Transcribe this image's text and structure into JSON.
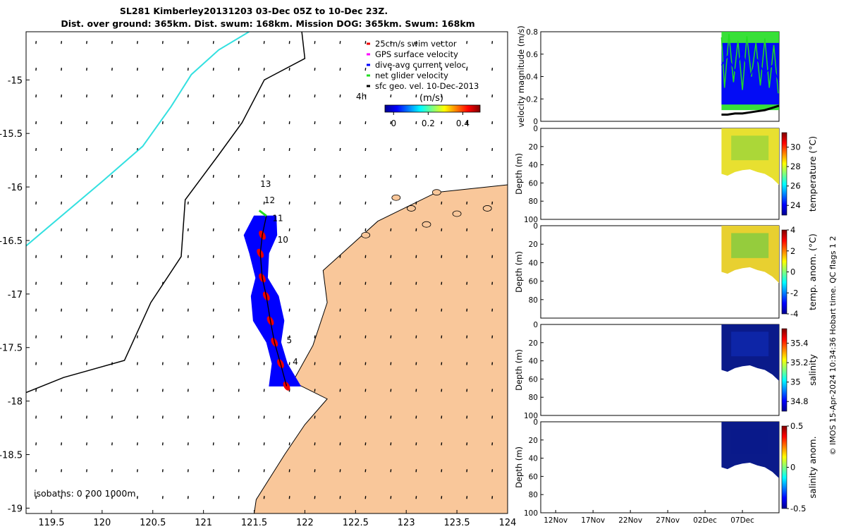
{
  "title_line1": "SL281 Kimberley20131203 03-Dec 05Z to 10-Dec 23Z.",
  "title_line2": "Dist. over ground: 365km. Dist. swum: 168km. Mission DOG: 365km. Swum: 168km",
  "colors": {
    "land": "#f9c79a",
    "track": "#0000ff",
    "isobath_200": "#000000",
    "isobath_1000": "#33e0e0",
    "net_velocity": "#22dd22",
    "swim_vector": "#ee0000",
    "gps_velocity": "#ff00ff",
    "temperature_fill": "#e8e030",
    "salinity_fill": "#0a1a8a"
  },
  "chart_data": [
    {
      "type": "map",
      "title": "glider track map",
      "x_ticks": [
        "119.5",
        "120",
        "120.5",
        "121",
        "121.5",
        "122",
        "122.5",
        "123",
        "123.5",
        "124"
      ],
      "x_tick_values": [
        119.5,
        120,
        120.5,
        121,
        121.5,
        122,
        122.5,
        123,
        123.5,
        124
      ],
      "y_ticks": [
        "-15",
        "-15.5",
        "-16",
        "-16.5",
        "-17",
        "-17.5",
        "-18",
        "-18.5",
        "-19"
      ],
      "y_tick_values": [
        -15,
        -15.5,
        -16,
        -16.5,
        -17,
        -17.5,
        -18,
        -18.5,
        -19
      ],
      "xlim": [
        119.25,
        124.0
      ],
      "ylim": [
        -19.05,
        -14.55
      ],
      "legend": [
        {
          "label": "25cm/s swim vector",
          "color": "#ee0000"
        },
        {
          "label": "GPS surface velocity",
          "color": "#ff00ff"
        },
        {
          "label": "dive-avg current veloc.",
          "color": "#0000ff"
        },
        {
          "label": "net glider velocity",
          "color": "#22dd22"
        },
        {
          "label": "sfc geo. vel. 10-Dec-2013",
          "color": "#000000"
        }
      ],
      "colorbar": {
        "label": "(m/s)",
        "ticks": [
          "0",
          "0.2",
          "0.4"
        ],
        "tick_values": [
          0,
          0.2,
          0.4
        ],
        "range": [
          -0.05,
          0.5
        ]
      },
      "arrow_time_label": "4h",
      "day_labels": [
        {
          "text": "13",
          "lon": 121.56,
          "lat": -16.0
        },
        {
          "text": "12",
          "lon": 121.6,
          "lat": -16.15
        },
        {
          "text": "11",
          "lon": 121.68,
          "lat": -16.32
        },
        {
          "text": "10",
          "lon": 121.73,
          "lat": -16.52
        },
        {
          "text": "5",
          "lon": 121.82,
          "lat": -17.46
        },
        {
          "text": "4",
          "lon": 121.88,
          "lat": -17.66
        }
      ],
      "isobath_label": "isobaths: 0   200  1000m",
      "glider_track": [
        [
          121.62,
          -16.27
        ],
        [
          121.58,
          -16.45
        ],
        [
          121.56,
          -16.62
        ],
        [
          121.58,
          -16.85
        ],
        [
          121.62,
          -17.02
        ],
        [
          121.66,
          -17.25
        ],
        [
          121.7,
          -17.45
        ],
        [
          121.76,
          -17.65
        ],
        [
          121.82,
          -17.86
        ]
      ],
      "isobath_1000m": [
        [
          121.45,
          -14.55
        ],
        [
          121.15,
          -14.72
        ],
        [
          120.88,
          -14.95
        ],
        [
          120.68,
          -15.25
        ],
        [
          120.4,
          -15.62
        ],
        [
          120.0,
          -15.95
        ],
        [
          119.25,
          -16.55
        ]
      ],
      "isobath_200m": [
        [
          121.97,
          -14.55
        ],
        [
          122.0,
          -14.8
        ],
        [
          121.6,
          -15.0
        ],
        [
          121.38,
          -15.4
        ],
        [
          121.15,
          -15.7
        ],
        [
          120.82,
          -16.12
        ],
        [
          120.78,
          -16.65
        ],
        [
          120.48,
          -17.08
        ],
        [
          120.22,
          -17.62
        ],
        [
          119.62,
          -17.78
        ],
        [
          119.25,
          -17.92
        ]
      ],
      "coastline": [
        [
          124.0,
          -15.98
        ],
        [
          123.3,
          -16.05
        ],
        [
          122.72,
          -16.32
        ],
        [
          122.18,
          -16.78
        ],
        [
          122.22,
          -17.08
        ],
        [
          122.08,
          -17.48
        ],
        [
          121.88,
          -17.82
        ],
        [
          122.22,
          -17.98
        ],
        [
          122.0,
          -18.22
        ],
        [
          121.8,
          -18.5
        ],
        [
          121.52,
          -18.92
        ],
        [
          121.5,
          -19.05
        ],
        [
          124.0,
          -19.05
        ]
      ]
    },
    {
      "type": "line",
      "panel": "velocity",
      "ylabel": "velocity magnitude (m/s)",
      "ylim": [
        0,
        0.8
      ],
      "y_ticks": [
        "0",
        "0.2",
        "0.4",
        "0.6",
        "0.8"
      ],
      "y_tick_values": [
        0,
        0.2,
        0.4,
        0.6,
        0.8
      ],
      "series": [
        {
          "name": "net glider velocity",
          "color": "#22dd22",
          "x": [
            3.2,
            3.6,
            4.2,
            4.8,
            5.4,
            6.0,
            6.6,
            7.2,
            7.8,
            8.4,
            9.0,
            9.6,
            10.2,
            10.8
          ],
          "values": [
            0.75,
            0.3,
            0.78,
            0.35,
            0.72,
            0.28,
            0.76,
            0.4,
            0.7,
            0.32,
            0.74,
            0.3,
            0.68,
            0.25
          ]
        },
        {
          "name": "dive-avg current veloc.",
          "color": "#0000ff",
          "x": [
            3.2,
            4.0,
            5.0,
            6.0,
            7.0,
            8.0,
            9.0,
            10.0,
            10.9
          ],
          "values": [
            0.5,
            0.58,
            0.45,
            0.62,
            0.4,
            0.55,
            0.42,
            0.5,
            0.35
          ]
        },
        {
          "name": "sfc geo. vel.",
          "color": "#000000",
          "x": [
            3.2,
            4.0,
            5.0,
            6.0,
            7.0,
            8.0,
            9.0,
            10.0,
            10.9
          ],
          "values": [
            0.06,
            0.06,
            0.07,
            0.07,
            0.08,
            0.09,
            0.1,
            0.12,
            0.14
          ]
        }
      ],
      "x_day_range": [
        -21,
        10.9
      ]
    },
    {
      "type": "heatmap",
      "panel": "temperature",
      "ylabel": "Depth (m)",
      "colorbar_label": "temperature (°C)",
      "colorbar_ticks": [
        "24",
        "26",
        "28",
        "30"
      ],
      "colorbar_tick_values": [
        24,
        26,
        28,
        30
      ],
      "colorbar_range": [
        23,
        31.5
      ],
      "y_ticks": [
        "0",
        "20",
        "40",
        "60",
        "80",
        "100"
      ],
      "y_tick_values": [
        0,
        20,
        40,
        60,
        80,
        100
      ],
      "ylim": [
        0,
        100
      ],
      "bottom_depth_day": [
        3.2,
        4.0,
        5.0,
        6.0,
        7.0,
        8.0,
        9.0,
        10.0,
        10.9
      ],
      "bottom_depth_m": [
        50,
        52,
        48,
        46,
        45,
        48,
        50,
        55,
        62
      ]
    },
    {
      "type": "heatmap",
      "panel": "temperature anomaly",
      "ylabel": "Depth (m)",
      "colorbar_label": "temp. anom. (°C)",
      "colorbar_ticks": [
        "-4",
        "-2",
        "0",
        "2",
        "4"
      ],
      "colorbar_tick_values": [
        -4,
        -2,
        0,
        2,
        4
      ],
      "colorbar_range": [
        -4,
        4
      ],
      "y_ticks": [
        "0",
        "20",
        "40",
        "60",
        "80"
      ],
      "y_tick_values": [
        0,
        20,
        40,
        60,
        80
      ],
      "ylim": [
        0,
        100
      ],
      "bottom_depth_day": [
        3.2,
        4.0,
        5.0,
        6.0,
        7.0,
        8.0,
        9.0,
        10.0,
        10.9
      ],
      "bottom_depth_m": [
        50,
        52,
        48,
        46,
        45,
        48,
        50,
        55,
        62
      ]
    },
    {
      "type": "heatmap",
      "panel": "salinity",
      "ylabel": "Depth (m)",
      "colorbar_label": "salinity",
      "colorbar_ticks": [
        "34.8",
        "35",
        "35.2",
        "35.4"
      ],
      "colorbar_tick_values": [
        34.8,
        35.0,
        35.2,
        35.4
      ],
      "colorbar_range": [
        34.7,
        35.55
      ],
      "y_ticks": [
        "0",
        "20",
        "40",
        "60",
        "80",
        "100"
      ],
      "y_tick_values": [
        0,
        20,
        40,
        60,
        80,
        100
      ],
      "ylim": [
        0,
        100
      ],
      "bottom_depth_day": [
        3.2,
        4.0,
        5.0,
        6.0,
        7.0,
        8.0,
        9.0,
        10.0,
        10.9
      ],
      "bottom_depth_m": [
        50,
        52,
        48,
        46,
        45,
        48,
        50,
        55,
        62
      ]
    },
    {
      "type": "heatmap",
      "panel": "salinity anomaly",
      "ylabel": "Depth (m)",
      "colorbar_label": "salinity anom.",
      "colorbar_ticks": [
        "-0.5",
        "0",
        "0.5"
      ],
      "colorbar_tick_values": [
        -0.5,
        0,
        0.5
      ],
      "colorbar_range": [
        -0.5,
        0.5
      ],
      "y_ticks": [
        "0",
        "20",
        "40",
        "60",
        "80",
        "100"
      ],
      "y_tick_values": [
        0,
        20,
        40,
        60,
        80,
        100
      ],
      "ylim": [
        0,
        100
      ],
      "bottom_depth_day": [
        3.2,
        4.0,
        5.0,
        6.0,
        7.0,
        8.0,
        9.0,
        10.0,
        10.9
      ],
      "bottom_depth_m": [
        50,
        52,
        48,
        46,
        45,
        48,
        50,
        55,
        62
      ],
      "x_ticks": [
        "12Nov",
        "17Nov",
        "22Nov",
        "27Nov",
        "02Dec",
        "07Dec"
      ],
      "x_tick_days": [
        -19,
        -14,
        -9,
        -4,
        1,
        6
      ]
    }
  ],
  "side_note": "© IMOS 15-Apr-2024 10:34:36 Hobart time. QC flags 1  2"
}
